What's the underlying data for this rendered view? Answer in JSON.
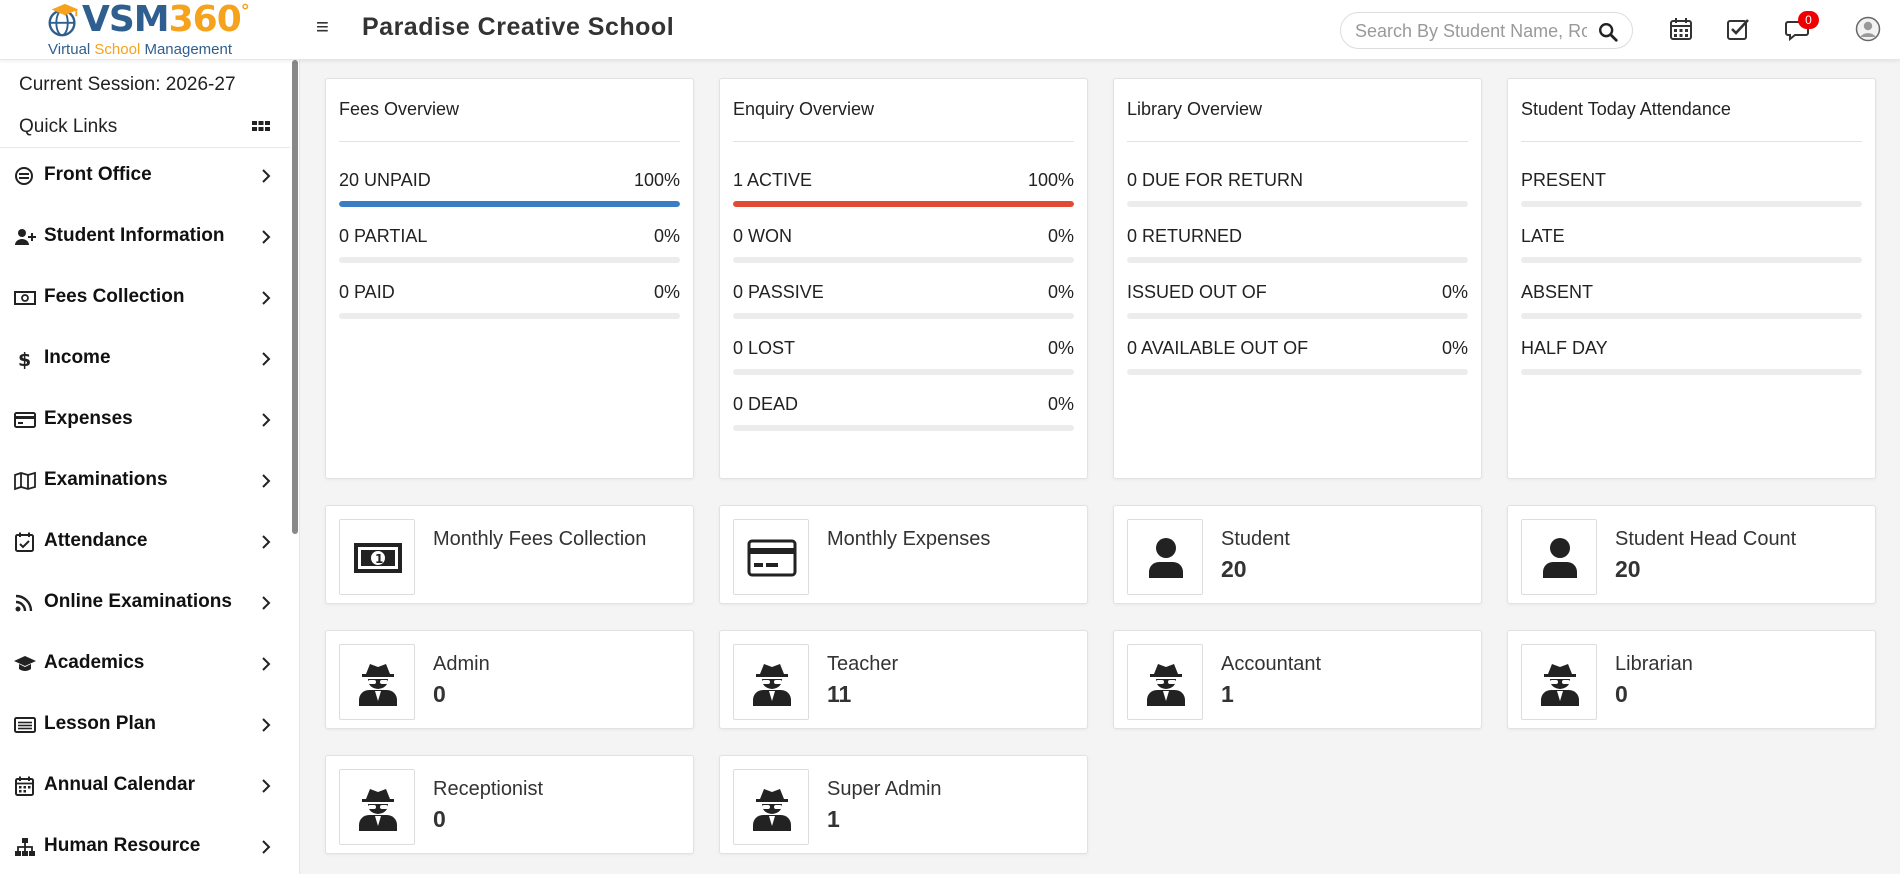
{
  "header": {
    "logo": {
      "name_part1": "VSM",
      "name_part2": "360",
      "degree": "°",
      "sub_part1": "Virtual ",
      "sub_part2": "School",
      "sub_part3": " Management"
    },
    "school_name": "Paradise Creative School",
    "search_placeholder": "Search By Student Name, Roll Number, Enroll Number, National Id, Local Id Etc.",
    "notification_count": "0"
  },
  "sidebar": {
    "session": "Current Session: 2026-27",
    "quick_links": "Quick Links",
    "items": [
      {
        "label": "Front Office",
        "icon": "front-office-icon"
      },
      {
        "label": "Student Information",
        "icon": "user-plus-icon"
      },
      {
        "label": "Fees Collection",
        "icon": "money-icon"
      },
      {
        "label": "Income",
        "icon": "dollar-icon"
      },
      {
        "label": "Expenses",
        "icon": "credit-card-icon"
      },
      {
        "label": "Examinations",
        "icon": "map-icon"
      },
      {
        "label": "Attendance",
        "icon": "calendar-check-icon"
      },
      {
        "label": "Online Examinations",
        "icon": "rss-icon"
      },
      {
        "label": "Academics",
        "icon": "graduation-cap-icon"
      },
      {
        "label": "Lesson Plan",
        "icon": "list-alt-icon"
      },
      {
        "label": "Annual Calendar",
        "icon": "calendar-icon"
      },
      {
        "label": "Human Resource",
        "icon": "sitemap-icon"
      }
    ]
  },
  "overviews": [
    {
      "title": "Fees Overview",
      "rows": [
        {
          "label": "20 UNPAID",
          "percent": "100%",
          "fill": 1.0,
          "color": "#3a7dc4"
        },
        {
          "label": "0 PARTIAL",
          "percent": "0%",
          "fill": 0,
          "color": "#3a7dc4"
        },
        {
          "label": "0 PAID",
          "percent": "0%",
          "fill": 0,
          "color": "#3a7dc4"
        }
      ]
    },
    {
      "title": "Enquiry Overview",
      "rows": [
        {
          "label": "1 ACTIVE",
          "percent": "100%",
          "fill": 1.0,
          "color": "#e04a36"
        },
        {
          "label": "0 WON",
          "percent": "0%",
          "fill": 0,
          "color": "#e04a36"
        },
        {
          "label": "0 PASSIVE",
          "percent": "0%",
          "fill": 0,
          "color": "#e04a36"
        },
        {
          "label": "0 LOST",
          "percent": "0%",
          "fill": 0,
          "color": "#e04a36"
        },
        {
          "label": "0 DEAD",
          "percent": "0%",
          "fill": 0,
          "color": "#e04a36"
        }
      ]
    },
    {
      "title": "Library Overview",
      "rows": [
        {
          "label": "0 DUE FOR RETURN",
          "percent": "",
          "fill": 0,
          "color": "#3a7dc4"
        },
        {
          "label": "0 RETURNED",
          "percent": "",
          "fill": 0,
          "color": "#3a7dc4"
        },
        {
          "label": "ISSUED OUT OF",
          "percent": "0%",
          "fill": 0,
          "color": "#3a7dc4"
        },
        {
          "label": "0 AVAILABLE OUT OF",
          "percent": "0%",
          "fill": 0,
          "color": "#3a7dc4"
        }
      ]
    },
    {
      "title": "Student Today Attendance",
      "rows": [
        {
          "label": "PRESENT",
          "percent": "",
          "fill": 0,
          "color": "#3a7dc4"
        },
        {
          "label": "LATE",
          "percent": "",
          "fill": 0,
          "color": "#3a7dc4"
        },
        {
          "label": "ABSENT",
          "percent": "",
          "fill": 0,
          "color": "#3a7dc4"
        },
        {
          "label": "HALF DAY",
          "percent": "",
          "fill": 0,
          "color": "#3a7dc4"
        }
      ]
    }
  ],
  "stats": [
    {
      "label": "Monthly Fees Collection",
      "count": "",
      "icon": "money-bill-icon"
    },
    {
      "label": "Monthly Expenses",
      "count": "",
      "icon": "credit-card-icon"
    },
    {
      "label": "Student",
      "count": "20",
      "icon": "user-icon"
    },
    {
      "label": "Student Head Count",
      "count": "20",
      "icon": "user-icon"
    },
    {
      "label": "Admin",
      "count": "0",
      "icon": "user-secret-icon"
    },
    {
      "label": "Teacher",
      "count": "11",
      "icon": "user-secret-icon"
    },
    {
      "label": "Accountant",
      "count": "1",
      "icon": "user-secret-icon"
    },
    {
      "label": "Librarian",
      "count": "0",
      "icon": "user-secret-icon"
    },
    {
      "label": "Receptionist",
      "count": "0",
      "icon": "user-secret-icon"
    },
    {
      "label": "Super Admin",
      "count": "1",
      "icon": "user-secret-icon"
    }
  ]
}
